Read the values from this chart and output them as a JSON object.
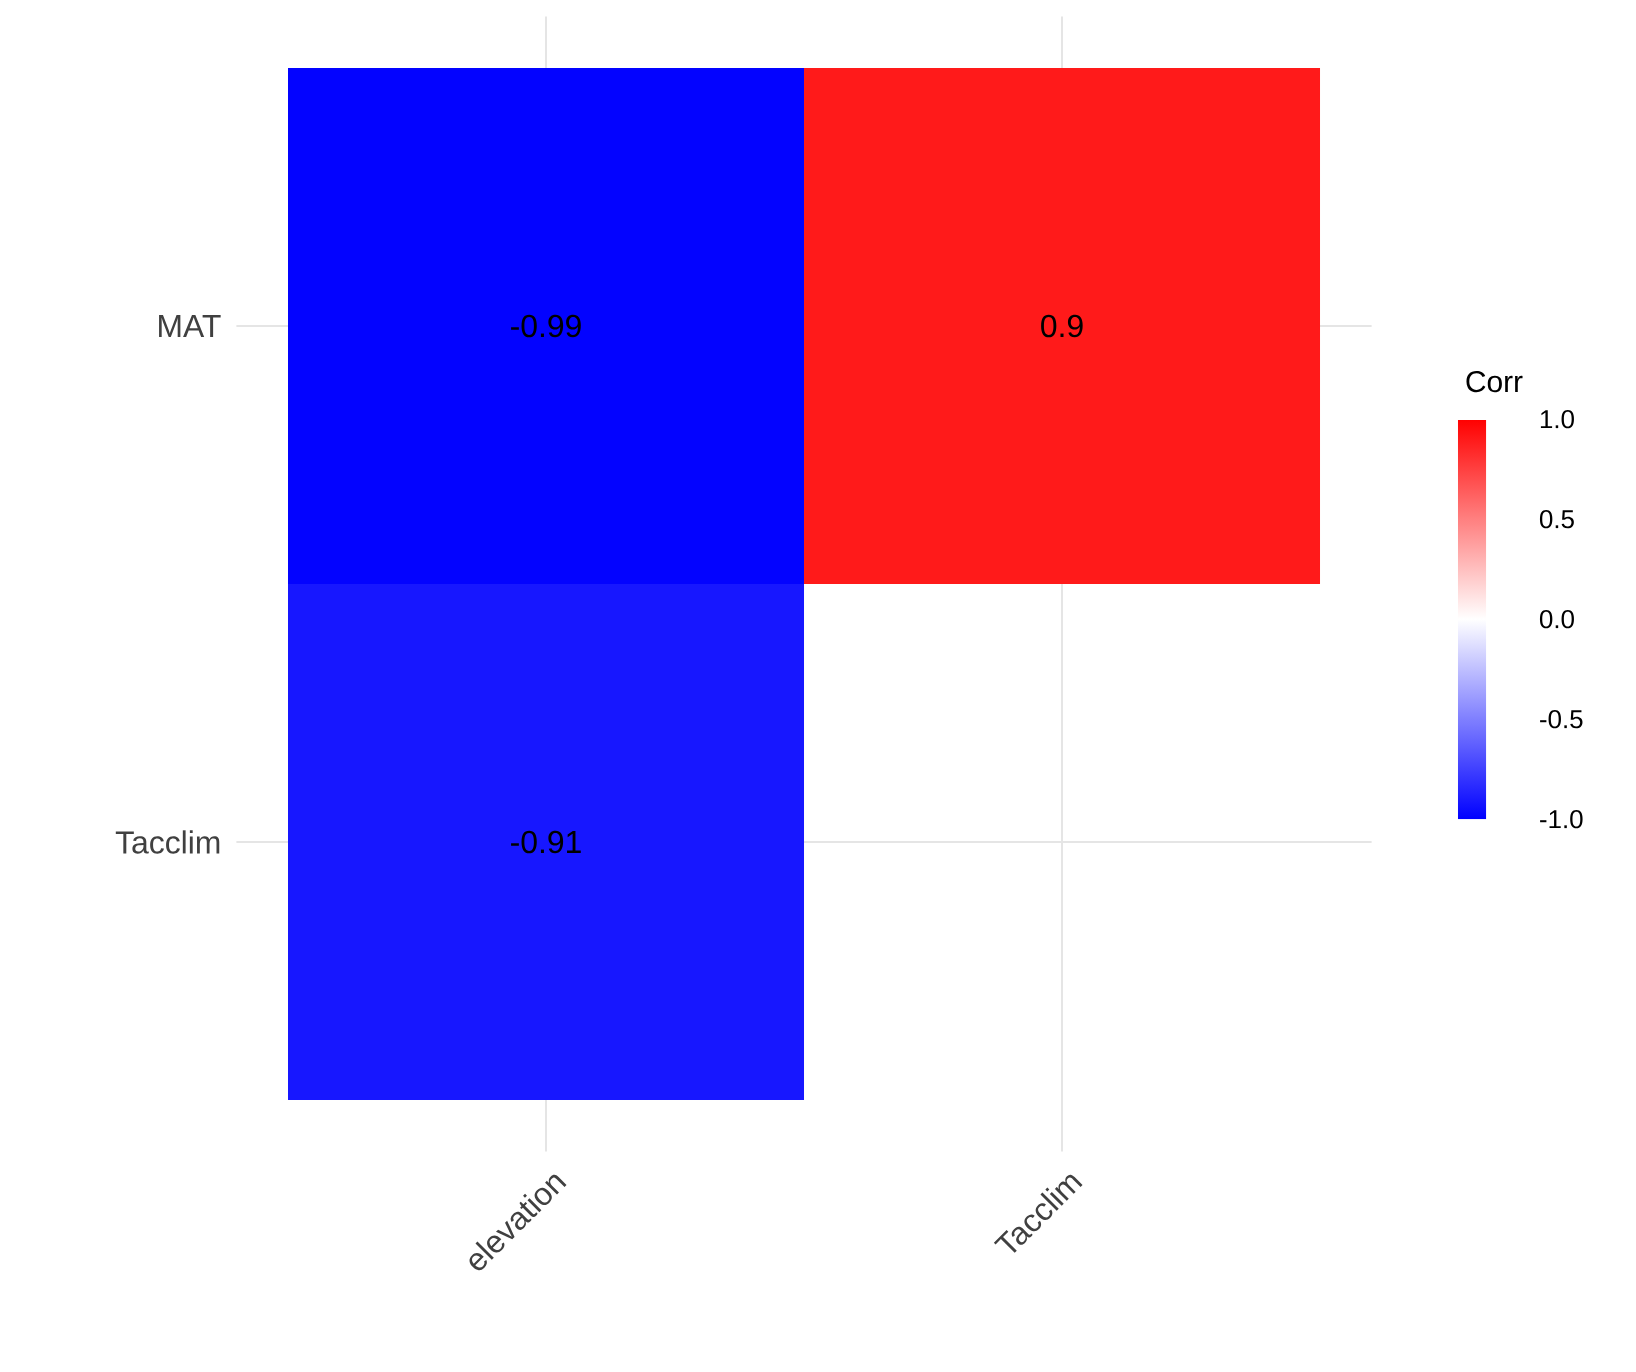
{
  "chart_data": {
    "type": "heatmap",
    "categories": [
      "elevation",
      "Tacclim"
    ],
    "y_categories": [
      "MAT",
      "Tacclim"
    ],
    "cells": [
      [
        -0.99,
        0.9
      ],
      [
        -0.91,
        null
      ]
    ],
    "cell_labels": [
      [
        "-0.99",
        "0.9"
      ],
      [
        "-0.91",
        null
      ]
    ],
    "clabel": "Corr",
    "clim": [
      -1,
      1
    ],
    "cticks": [
      {
        "value": -1,
        "label": "-1.0"
      },
      {
        "value": -0.5,
        "label": "-0.5"
      },
      {
        "value": 0,
        "label": "0.0"
      },
      {
        "value": 0.5,
        "label": "0.5"
      },
      {
        "value": 1,
        "label": "1.0"
      }
    ],
    "grid": true
  }
}
